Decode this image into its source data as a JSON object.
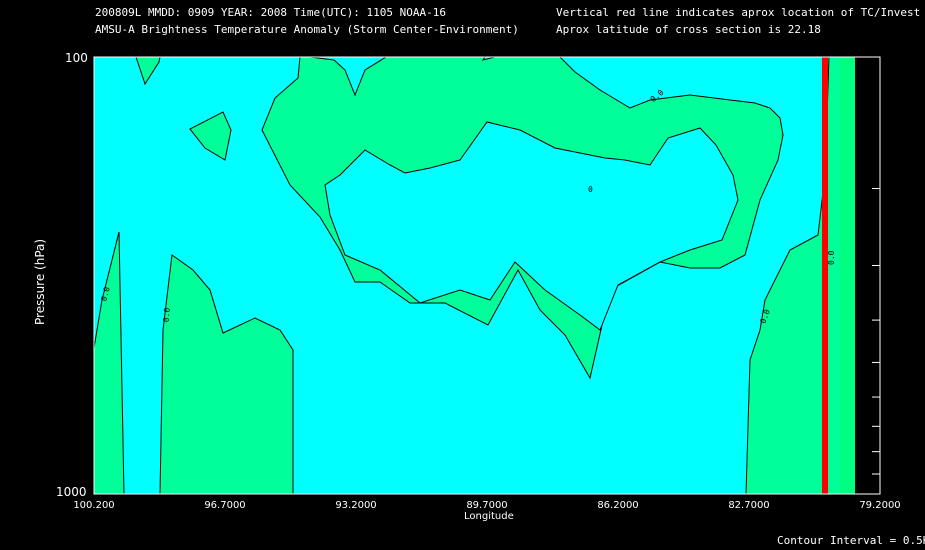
{
  "header": {
    "line1_left": "200809L  MMDD: 0909 YEAR: 2008 Time(UTC): 1105 NOAA-16",
    "line2_left": "AMSU-A Brightness Temperature Anomaly (Storm Center-Environment)",
    "line1_right": "Vertical red line indicates aprox location of TC/Invest",
    "line2_right": "Aprox latitude of cross section is 22.18"
  },
  "footer": {
    "contour_interval": "Contour Interval = 0.5K"
  },
  "chart_data": {
    "type": "contour",
    "title": "AMSU-A Brightness Temperature Anomaly (Storm Center-Environment)",
    "xlabel": "Longitude",
    "ylabel": "Pressure (hPa)",
    "y_scale": "log",
    "ylim": [
      1000,
      100
    ],
    "xlim": [
      100.2,
      79.2
    ],
    "x_ticks": [
      "100.200",
      "96.7000",
      "93.2000",
      "89.7000",
      "86.2000",
      "82.7000",
      "79.2000"
    ],
    "x_tick_values": [
      100.2,
      96.7,
      93.2,
      89.7,
      86.2,
      82.7,
      79.2
    ],
    "y_tick_labels": [
      "100",
      "1000"
    ],
    "y_tick_values": [
      100,
      1000
    ],
    "storm_longitude": 81.2,
    "contour_labels": [
      "0.0",
      "0.0",
      "0.0",
      "0.0",
      "0.0",
      "0"
    ],
    "colors": {
      "background": "#000000",
      "fill_negative": "#00ffff",
      "fill_zero_to_half": "#00ff99",
      "fill_half_plus": "#00ff80",
      "contour_line": "#000000",
      "storm_line": "#ff0000"
    },
    "regions": [
      {
        "name": "left-plume",
        "shape": "polygon",
        "points": [
          [
            100.2,
            380
          ],
          [
            99.8,
            420
          ],
          [
            99.5,
            1000
          ],
          [
            100.2,
            1000
          ]
        ]
      },
      {
        "name": "right-boundary-zero-contour",
        "points": [
          [
            81.9,
            100
          ],
          [
            81.4,
            100
          ],
          [
            81.6,
            300
          ],
          [
            81.9,
            700
          ],
          [
            82.7,
            1000
          ]
        ]
      }
    ]
  }
}
